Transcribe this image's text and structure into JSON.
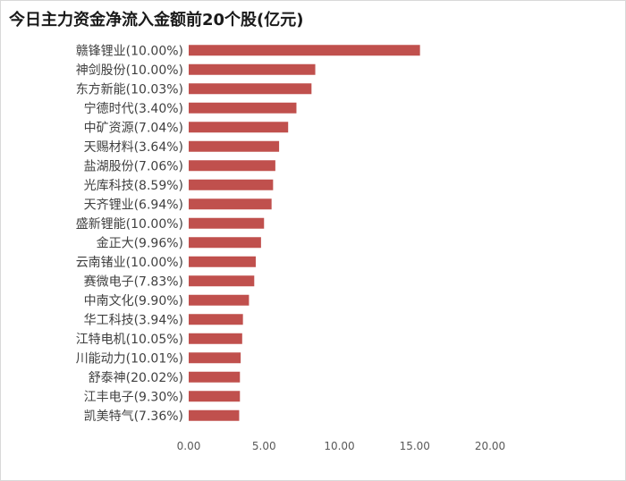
{
  "chart_data": {
    "type": "bar",
    "orientation": "horizontal",
    "title": "今日主力资金净流入金额前20个股(亿元)",
    "categories": [
      "赣锋锂业(10.00%)",
      "神剑股份(10.00%)",
      "东方新能(10.03%)",
      "宁德时代(3.40%)",
      "中矿资源(7.04%)",
      "天赐材料(3.64%)",
      "盐湖股份(7.06%)",
      "光库科技(8.59%)",
      "天齐锂业(6.94%)",
      "盛新锂能(10.00%)",
      "金正大(9.96%)",
      "云南锗业(10.00%)",
      "赛微电子(7.83%)",
      "中南文化(9.90%)",
      "华工科技(3.94%)",
      "江特电机(10.05%)",
      "川能动力(10.01%)",
      "舒泰神(20.02%)",
      "江丰电子(9.30%)",
      "凯美特气(7.36%)"
    ],
    "values": [
      15.35,
      8.4,
      8.15,
      7.15,
      6.6,
      6.0,
      5.75,
      5.6,
      5.5,
      5.0,
      4.8,
      4.45,
      4.35,
      4.0,
      3.6,
      3.55,
      3.45,
      3.4,
      3.4,
      3.35
    ],
    "xlim": [
      0,
      20
    ],
    "x_ticks": [
      "0.00",
      "5.00",
      "10.00",
      "15.00",
      "20.00"
    ],
    "grid": false,
    "bar_color": "#c0504d"
  }
}
